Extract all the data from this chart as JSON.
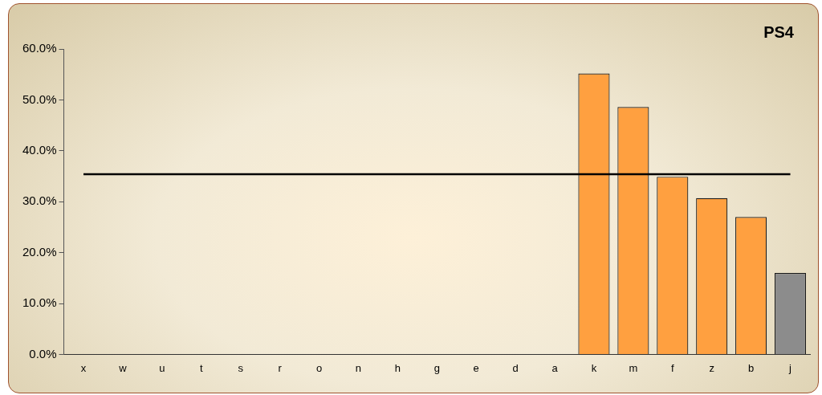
{
  "chart_data": {
    "type": "bar",
    "title": "PS4",
    "categories": [
      "x",
      "w",
      "u",
      "t",
      "s",
      "r",
      "o",
      "n",
      "h",
      "g",
      "e",
      "d",
      "a",
      "k",
      "m",
      "f",
      "z",
      "b",
      "j"
    ],
    "values": [
      null,
      null,
      null,
      null,
      null,
      null,
      null,
      null,
      null,
      null,
      null,
      null,
      null,
      55.2,
      48.6,
      34.9,
      30.7,
      27.0,
      16.0
    ],
    "colors": [
      "#ffa040",
      "#ffa040",
      "#ffa040",
      "#ffa040",
      "#ffa040",
      "#ffa040",
      "#ffa040",
      "#ffa040",
      "#ffa040",
      "#ffa040",
      "#ffa040",
      "#ffa040",
      "#ffa040",
      "#ffa040",
      "#ffa040",
      "#ffa040",
      "#ffa040",
      "#ffa040",
      "#8c8c8c"
    ],
    "ylim": [
      0,
      60
    ],
    "yticks": [
      {
        "value": 0,
        "label": "0.0%"
      },
      {
        "value": 10,
        "label": "10.0%"
      },
      {
        "value": 20,
        "label": "20.0%"
      },
      {
        "value": 30,
        "label": "30.0%"
      },
      {
        "value": 40,
        "label": "40.0%"
      },
      {
        "value": 50,
        "label": "50.0%"
      },
      {
        "value": 60,
        "label": "60.0%"
      }
    ],
    "ref_lines": [
      {
        "axis": "y",
        "value": 35.4,
        "color": "#000000"
      }
    ],
    "grid": false,
    "legend": false
  }
}
